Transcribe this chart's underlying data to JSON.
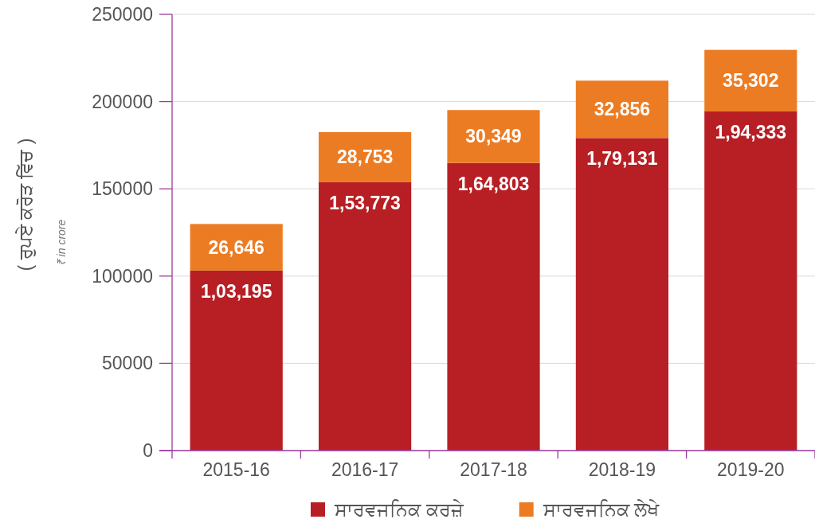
{
  "chart_data": {
    "type": "bar",
    "stacked": true,
    "ylabel": "( ਰੁਪਏ ਕਰੋੜ ਵਿੱਚ )",
    "annotations": [
      "₹ in crore"
    ],
    "categories": [
      "2015-16",
      "2016-17",
      "2017-18",
      "2018-19",
      "2019-20"
    ],
    "series": [
      {
        "name": "ਸਾਰਵਜਨਿਕ ਕਰਜ਼ੇ",
        "color": "#b71f24",
        "values": [
          103195,
          153773,
          164803,
          179131,
          194333
        ],
        "value_labels": [
          "1,03,195",
          "1,53,773",
          "1,64,803",
          "1,79,131",
          "1,94,333"
        ]
      },
      {
        "name": "ਸਾਰਵਜਨਿਕ ਲੇਖੇ",
        "color": "#ec7c23",
        "values": [
          26646,
          28753,
          30349,
          32856,
          35302
        ],
        "value_labels": [
          "26,646",
          "28,753",
          "30,349",
          "32,856",
          "35,302"
        ]
      }
    ],
    "ylim": [
      0,
      250000
    ],
    "yticks": [
      0,
      50000,
      100000,
      150000,
      200000,
      250000
    ],
    "grid": "y",
    "legend": "bottom"
  }
}
